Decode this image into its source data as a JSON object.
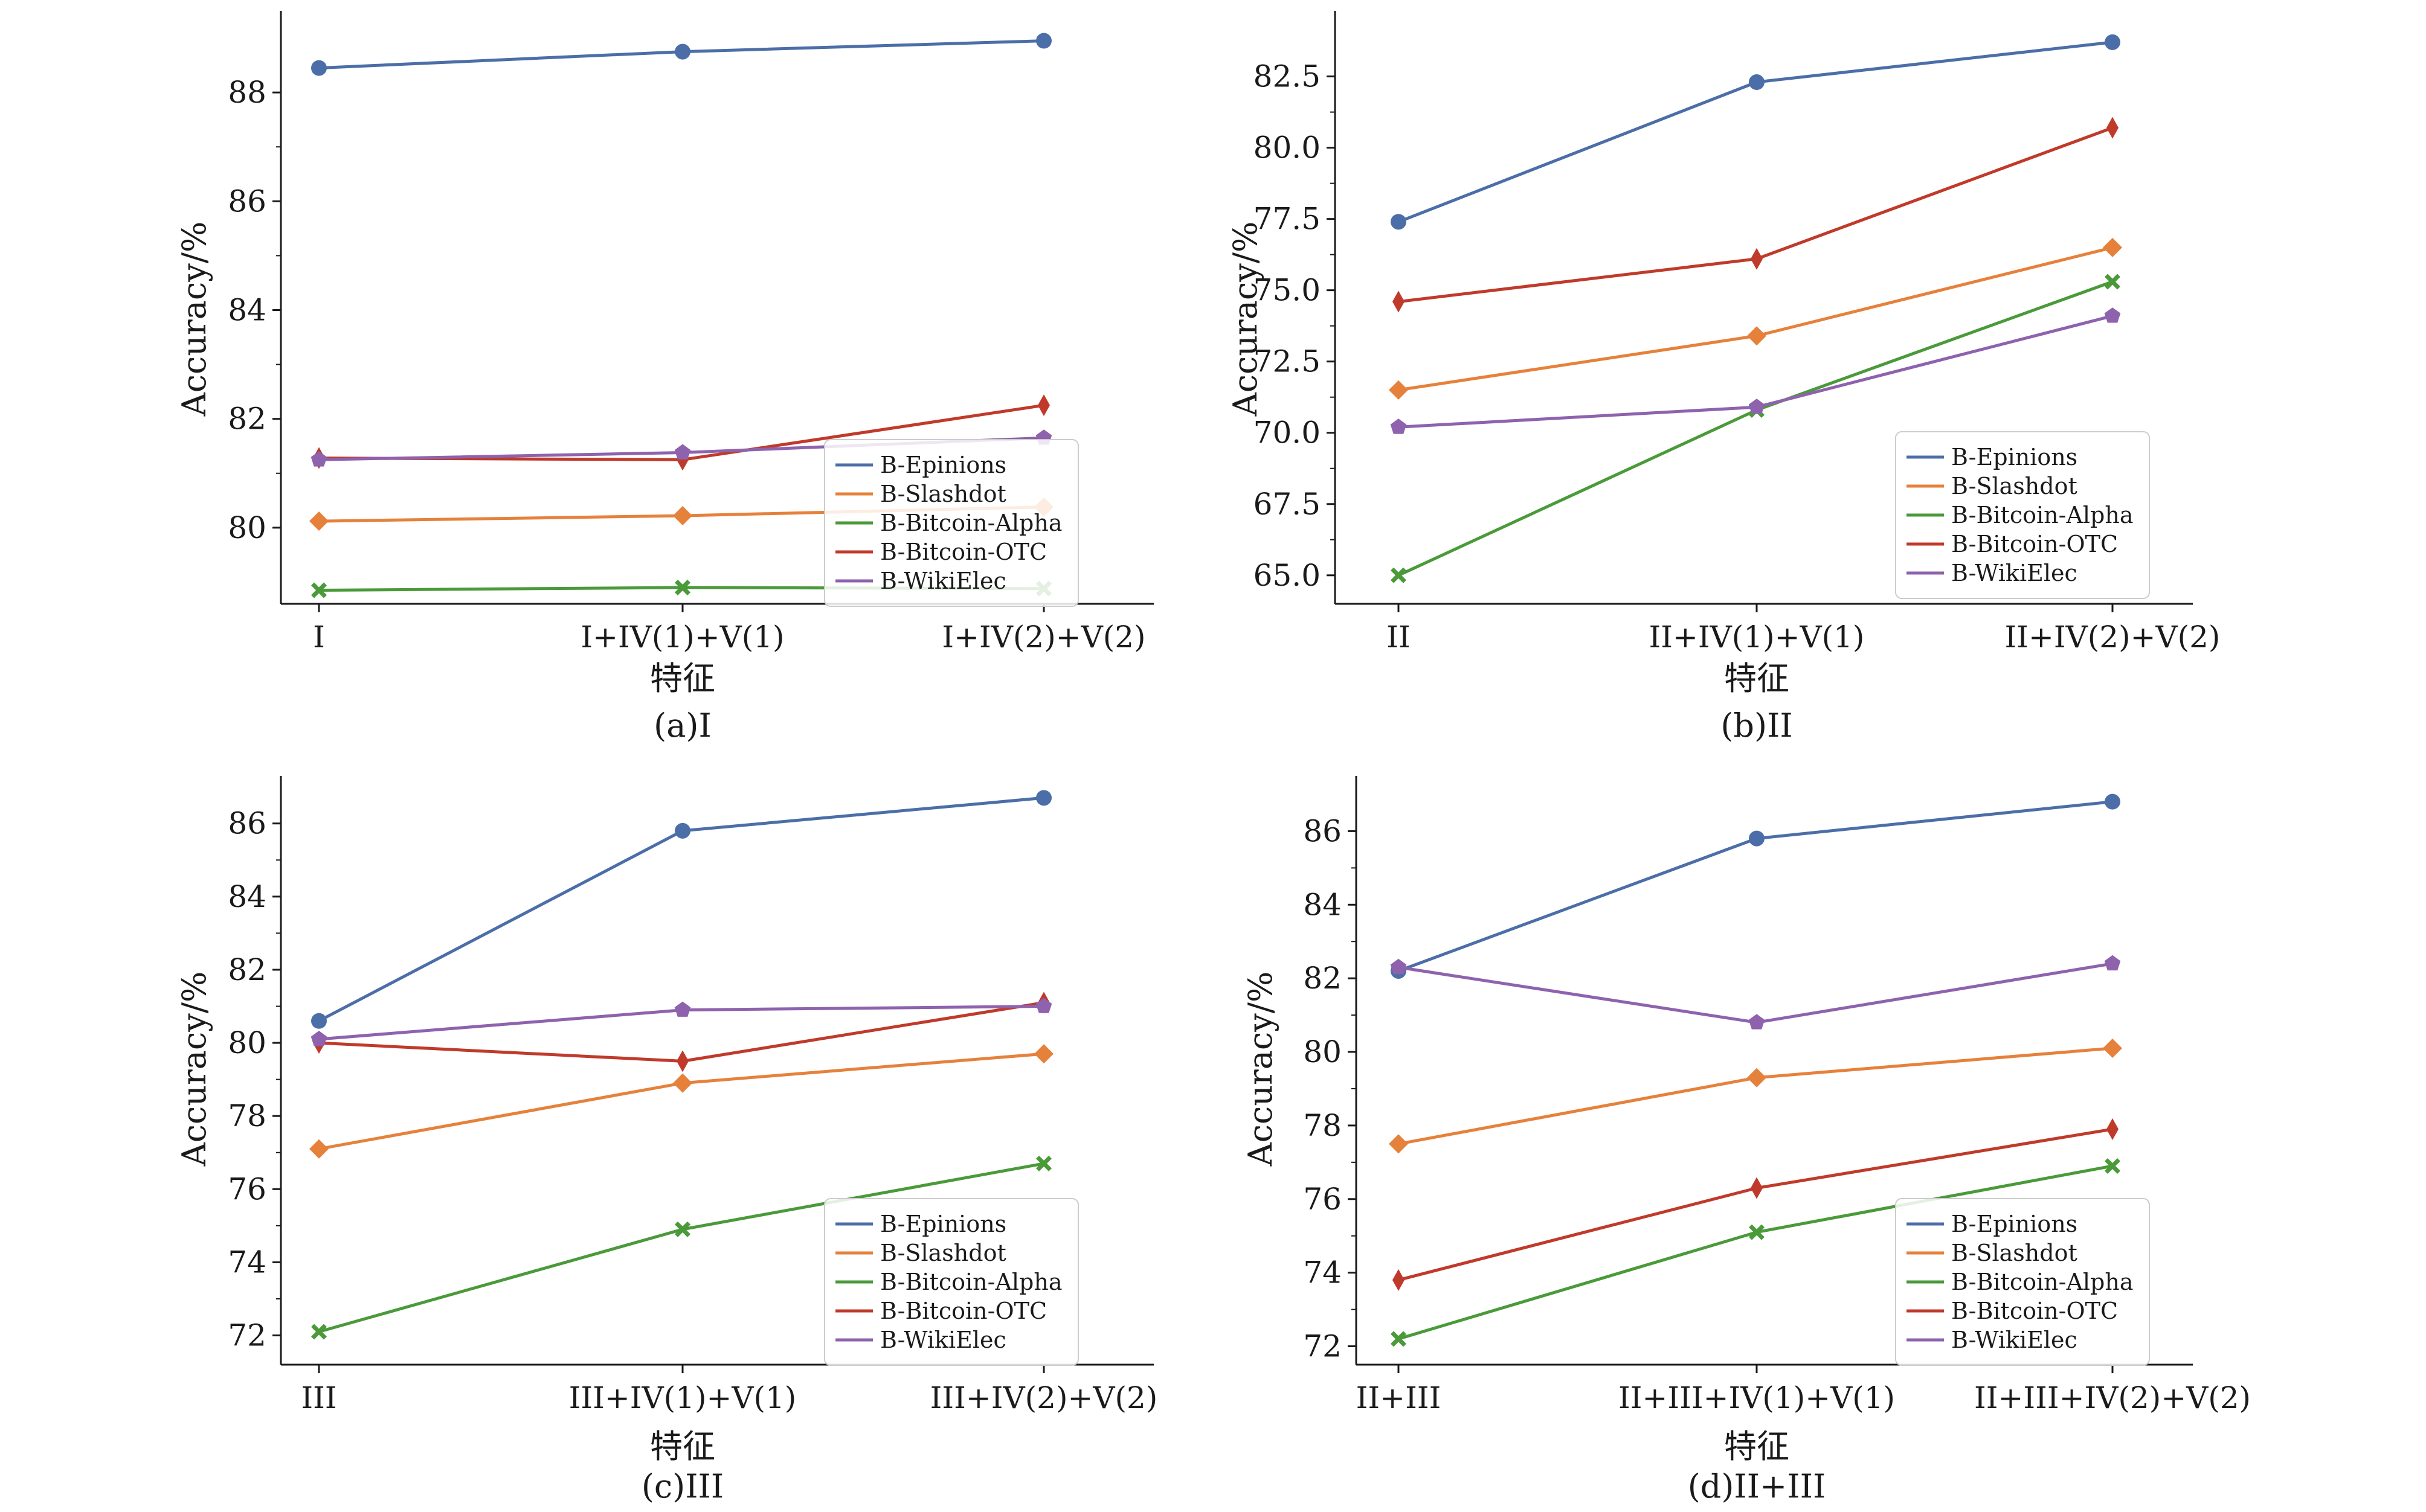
{
  "series_colors": {
    "B-Epinions": "#4c6ea8",
    "B-Slashdot": "#e6813b",
    "B-Bitcoin-Alpha": "#4a9a3a",
    "B-Bitcoin-OTC": "#c03a2b",
    "B-WikiElec": "#8e62ad"
  },
  "markers": {
    "B-Epinions": "circle",
    "B-Slashdot": "diamond",
    "B-Bitcoin-Alpha": "cross",
    "B-Bitcoin-OTC": "thin-diamond",
    "B-WikiElec": "pentagon"
  },
  "chart_data": [
    {
      "type": "line",
      "caption": "(a)I",
      "xlabel": "特征",
      "ylabel": "Accuracy/%",
      "categories": [
        "I",
        "I+IV(1)+V(1)",
        "I+IV(2)+V(2)"
      ],
      "ylim": [
        78.6,
        89.5
      ],
      "yticks": [
        "80",
        "82",
        "84",
        "86",
        "88"
      ],
      "ytick_values": [
        80,
        82,
        84,
        86,
        88
      ],
      "legend": "bottom-right",
      "series": [
        {
          "name": "B-Epinions",
          "values": [
            88.45,
            88.75,
            88.95
          ]
        },
        {
          "name": "B-Slashdot",
          "values": [
            80.12,
            80.22,
            80.38
          ]
        },
        {
          "name": "B-Bitcoin-Alpha",
          "values": [
            78.85,
            78.9,
            78.88
          ]
        },
        {
          "name": "B-Bitcoin-OTC",
          "values": [
            81.28,
            81.25,
            82.25
          ]
        },
        {
          "name": "B-WikiElec",
          "values": [
            81.25,
            81.38,
            81.65
          ]
        }
      ]
    },
    {
      "type": "line",
      "caption": "(b)II",
      "xlabel": "特征",
      "ylabel": "Accuracy/%",
      "categories": [
        "II",
        "II+IV(1)+V(1)",
        "II+IV(2)+V(2)"
      ],
      "ylim": [
        64.0,
        84.8
      ],
      "yticks": [
        "65.0",
        "67.5",
        "70.0",
        "72.5",
        "75.0",
        "77.5",
        "80.0",
        "82.5"
      ],
      "ytick_values": [
        65.0,
        67.5,
        70.0,
        72.5,
        75.0,
        77.5,
        80.0,
        82.5
      ],
      "legend": "bottom-right",
      "series": [
        {
          "name": "B-Epinions",
          "values": [
            77.4,
            82.3,
            83.7
          ]
        },
        {
          "name": "B-Slashdot",
          "values": [
            71.5,
            73.4,
            76.5
          ]
        },
        {
          "name": "B-Bitcoin-Alpha",
          "values": [
            65.0,
            70.8,
            75.3
          ]
        },
        {
          "name": "B-Bitcoin-OTC",
          "values": [
            74.6,
            76.1,
            80.7
          ]
        },
        {
          "name": "B-WikiElec",
          "values": [
            70.2,
            70.9,
            74.1
          ]
        }
      ]
    },
    {
      "type": "line",
      "caption": "(c)III",
      "xlabel": "特征",
      "ylabel": "Accuracy/%",
      "categories": [
        "III",
        "III+IV(1)+V(1)",
        "III+IV(2)+V(2)"
      ],
      "ylim": [
        71.2,
        87.3
      ],
      "yticks": [
        "72",
        "74",
        "76",
        "78",
        "80",
        "82",
        "84",
        "86"
      ],
      "ytick_values": [
        72,
        74,
        76,
        78,
        80,
        82,
        84,
        86
      ],
      "legend": "bottom-right",
      "series": [
        {
          "name": "B-Epinions",
          "values": [
            80.6,
            85.8,
            86.7
          ]
        },
        {
          "name": "B-Slashdot",
          "values": [
            77.1,
            78.9,
            79.7
          ]
        },
        {
          "name": "B-Bitcoin-Alpha",
          "values": [
            72.1,
            74.9,
            76.7
          ]
        },
        {
          "name": "B-Bitcoin-OTC",
          "values": [
            80.0,
            79.5,
            81.1
          ]
        },
        {
          "name": "B-WikiElec",
          "values": [
            80.1,
            80.9,
            81.0
          ]
        }
      ]
    },
    {
      "type": "line",
      "caption": "(d)II+III",
      "xlabel": "特征",
      "ylabel": "Accuracy/%",
      "categories": [
        "II+III",
        "II+III+IV(1)+V(1)",
        "II+III+IV(2)+V(2)"
      ],
      "ylim": [
        71.5,
        87.5
      ],
      "yticks": [
        "72",
        "74",
        "76",
        "78",
        "80",
        "82",
        "84",
        "86"
      ],
      "ytick_values": [
        72,
        74,
        76,
        78,
        80,
        82,
        84,
        86
      ],
      "legend": "bottom-right",
      "series": [
        {
          "name": "B-Epinions",
          "values": [
            82.2,
            85.8,
            86.8
          ]
        },
        {
          "name": "B-Slashdot",
          "values": [
            77.5,
            79.3,
            80.1
          ]
        },
        {
          "name": "B-Bitcoin-Alpha",
          "values": [
            72.2,
            75.1,
            76.9
          ]
        },
        {
          "name": "B-Bitcoin-OTC",
          "values": [
            73.8,
            76.3,
            77.9
          ]
        },
        {
          "name": "B-WikiElec",
          "values": [
            82.3,
            80.8,
            82.4
          ]
        }
      ]
    }
  ]
}
